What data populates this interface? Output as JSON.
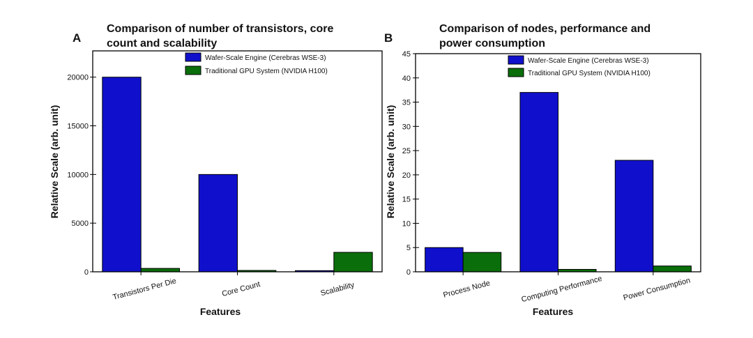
{
  "colors": {
    "wse": "#1010cc",
    "gpu": "#0a6e0a",
    "axis": "#000000"
  },
  "chart_data": [
    {
      "panel": "A",
      "type": "bar",
      "title_lines": [
        "Comparison of number of transistors, core",
        "count and scalability"
      ],
      "xlabel": "Features",
      "ylabel": "Relative Scale (arb. unit)",
      "ylim": [
        0,
        22700
      ],
      "yticks": [
        0,
        5000,
        10000,
        15000,
        20000
      ],
      "categories": [
        "Transistors Per Die",
        "Core Count",
        "Scalability"
      ],
      "series": [
        {
          "name": "Wafer-Scale Engine (Cerebras WSE-3)",
          "values": [
            20000,
            10000,
            120
          ]
        },
        {
          "name": "Traditional GPU System (NVIDIA H100)",
          "values": [
            350,
            140,
            2000
          ]
        }
      ],
      "legend": "top-right"
    },
    {
      "panel": "B",
      "type": "bar",
      "title_lines": [
        "Comparison of nodes, performance and",
        "power consumption"
      ],
      "xlabel": "Features",
      "ylabel": "Relative Scale (arb. unit)",
      "ylim": [
        0,
        45
      ],
      "yticks": [
        0,
        5,
        10,
        15,
        20,
        25,
        30,
        35,
        40,
        45
      ],
      "categories": [
        "Process Node",
        "Computing Performance",
        "Power Consumption"
      ],
      "series": [
        {
          "name": "Wafer-Scale Engine (Cerebras WSE-3)",
          "values": [
            5,
            37,
            23
          ]
        },
        {
          "name": "Traditional GPU System (NVIDIA H100)",
          "values": [
            4,
            0.5,
            1.2
          ]
        }
      ],
      "legend": "top-right"
    }
  ]
}
